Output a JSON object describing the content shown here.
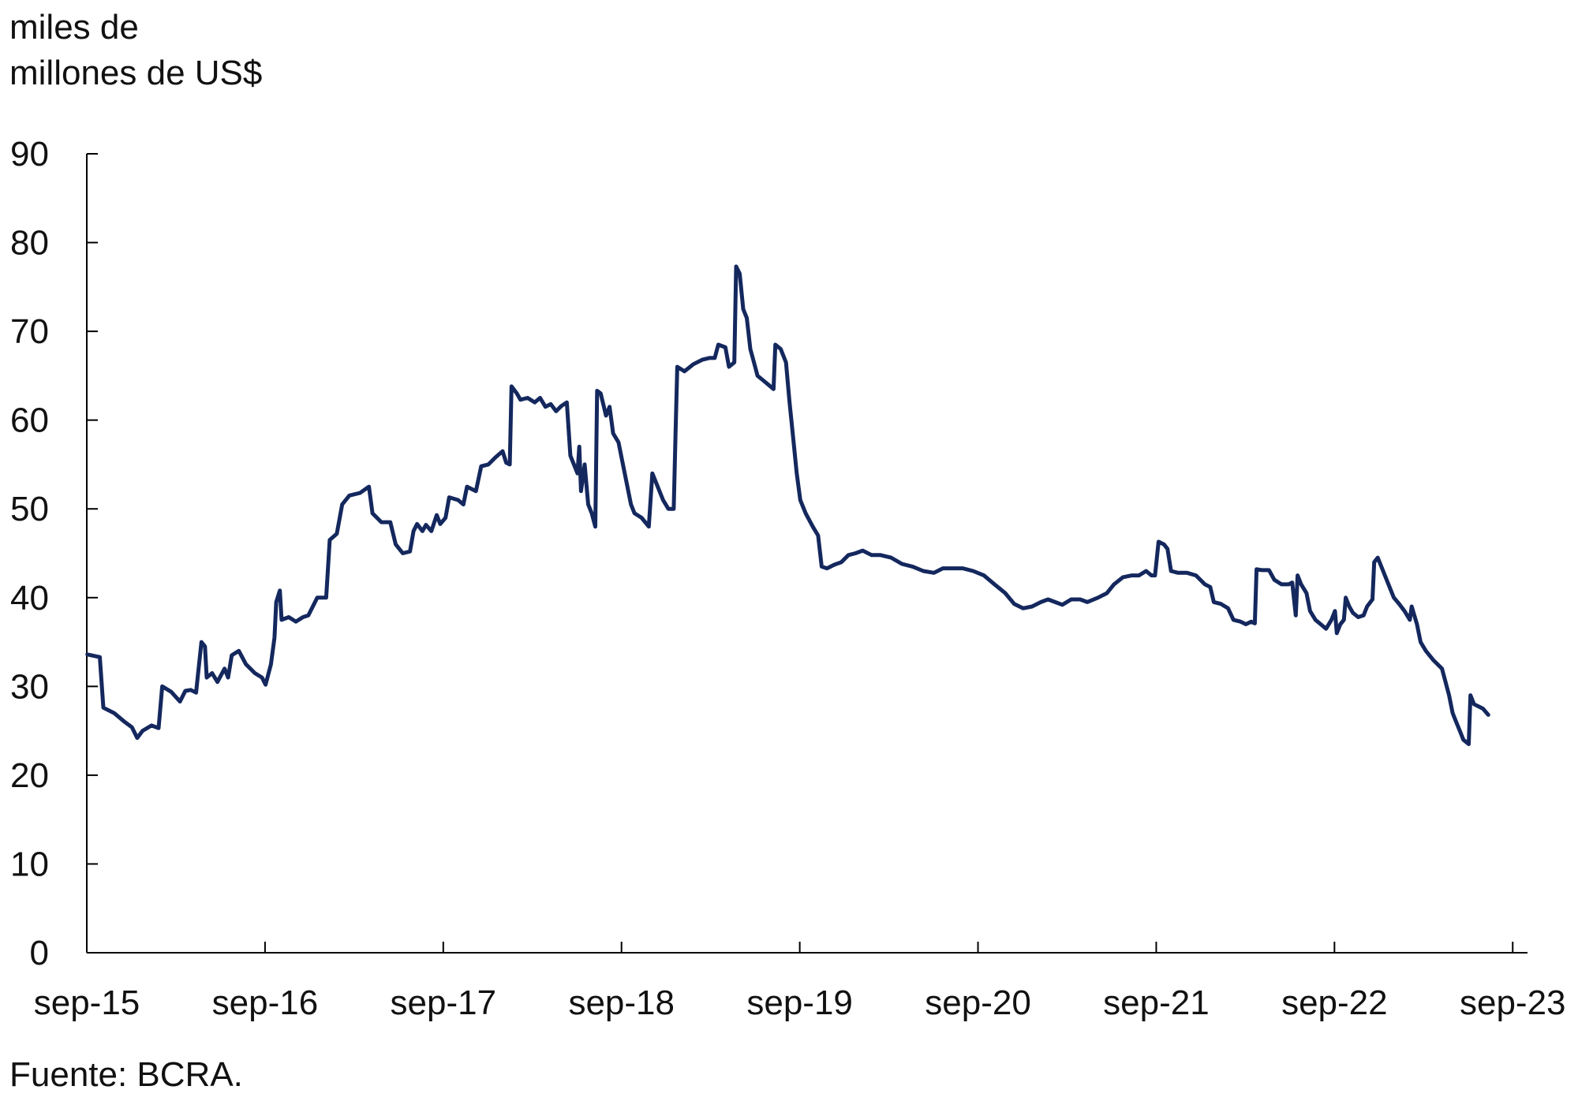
{
  "unit_label": [
    "miles de",
    "millones de US$"
  ],
  "source": "Fuente: BCRA.",
  "colors": {
    "line": "#14285e",
    "axis": "#000000",
    "text": "#111111"
  },
  "chart_data": {
    "type": "line",
    "title": "",
    "xlabel": "",
    "ylabel": "miles de millones de US$",
    "grid": false,
    "legend": "none",
    "xlim": [
      2015.667,
      2023.75
    ],
    "ylim": [
      0,
      90
    ],
    "yticks": [
      0,
      10,
      20,
      30,
      40,
      50,
      60,
      70,
      80,
      90
    ],
    "xticks": [
      {
        "x": 2015.667,
        "label": "sep-15"
      },
      {
        "x": 2016.667,
        "label": "sep-16"
      },
      {
        "x": 2017.667,
        "label": "sep-17"
      },
      {
        "x": 2018.667,
        "label": "sep-18"
      },
      {
        "x": 2019.667,
        "label": "sep-19"
      },
      {
        "x": 2020.667,
        "label": "sep-20"
      },
      {
        "x": 2021.667,
        "label": "sep-21"
      },
      {
        "x": 2022.667,
        "label": "sep-22"
      },
      {
        "x": 2023.667,
        "label": "sep-23"
      }
    ],
    "series": [
      {
        "name": "",
        "points": [
          [
            2015.67,
            33.6
          ],
          [
            2015.74,
            33.3
          ],
          [
            2015.76,
            27.6
          ],
          [
            2015.82,
            27.0
          ],
          [
            2015.88,
            26.0
          ],
          [
            2015.92,
            25.4
          ],
          [
            2015.95,
            24.2
          ],
          [
            2015.98,
            25.0
          ],
          [
            2016.03,
            25.6
          ],
          [
            2016.07,
            25.3
          ],
          [
            2016.09,
            30.0
          ],
          [
            2016.14,
            29.4
          ],
          [
            2016.19,
            28.3
          ],
          [
            2016.22,
            29.5
          ],
          [
            2016.25,
            29.6
          ],
          [
            2016.28,
            29.3
          ],
          [
            2016.31,
            35.0
          ],
          [
            2016.33,
            34.5
          ],
          [
            2016.34,
            31.0
          ],
          [
            2016.37,
            31.5
          ],
          [
            2016.4,
            30.5
          ],
          [
            2016.44,
            32.0
          ],
          [
            2016.46,
            31.0
          ],
          [
            2016.48,
            33.5
          ],
          [
            2016.52,
            34.0
          ],
          [
            2016.56,
            32.5
          ],
          [
            2016.61,
            31.5
          ],
          [
            2016.65,
            31.0
          ],
          [
            2016.67,
            30.2
          ],
          [
            2016.7,
            32.5
          ],
          [
            2016.72,
            35.5
          ],
          [
            2016.73,
            39.5
          ],
          [
            2016.75,
            40.8
          ],
          [
            2016.76,
            37.5
          ],
          [
            2016.8,
            37.8
          ],
          [
            2016.84,
            37.3
          ],
          [
            2016.88,
            37.8
          ],
          [
            2016.91,
            38.0
          ],
          [
            2016.96,
            40.0
          ],
          [
            2017.01,
            40.0
          ],
          [
            2017.03,
            46.5
          ],
          [
            2017.07,
            47.2
          ],
          [
            2017.1,
            50.5
          ],
          [
            2017.14,
            51.5
          ],
          [
            2017.2,
            51.8
          ],
          [
            2017.25,
            52.5
          ],
          [
            2017.27,
            49.5
          ],
          [
            2017.32,
            48.5
          ],
          [
            2017.37,
            48.5
          ],
          [
            2017.4,
            46.0
          ],
          [
            2017.44,
            45.0
          ],
          [
            2017.48,
            45.2
          ],
          [
            2017.5,
            47.5
          ],
          [
            2017.52,
            48.3
          ],
          [
            2017.55,
            47.5
          ],
          [
            2017.57,
            48.2
          ],
          [
            2017.6,
            47.5
          ],
          [
            2017.63,
            49.3
          ],
          [
            2017.65,
            48.3
          ],
          [
            2017.68,
            49.0
          ],
          [
            2017.7,
            51.3
          ],
          [
            2017.75,
            51.0
          ],
          [
            2017.78,
            50.5
          ],
          [
            2017.8,
            52.5
          ],
          [
            2017.85,
            52.0
          ],
          [
            2017.88,
            54.8
          ],
          [
            2017.92,
            55.0
          ],
          [
            2017.96,
            55.8
          ],
          [
            2018.0,
            56.5
          ],
          [
            2018.02,
            55.2
          ],
          [
            2018.04,
            55.0
          ],
          [
            2018.05,
            63.8
          ],
          [
            2018.08,
            63.0
          ],
          [
            2018.1,
            62.3
          ],
          [
            2018.14,
            62.5
          ],
          [
            2018.18,
            62.0
          ],
          [
            2018.21,
            62.5
          ],
          [
            2018.24,
            61.5
          ],
          [
            2018.27,
            61.8
          ],
          [
            2018.3,
            61.0
          ],
          [
            2018.33,
            61.6
          ],
          [
            2018.36,
            62.0
          ],
          [
            2018.38,
            56.0
          ],
          [
            2018.42,
            54.0
          ],
          [
            2018.43,
            57.0
          ],
          [
            2018.44,
            52.0
          ],
          [
            2018.46,
            55.0
          ],
          [
            2018.48,
            50.5
          ],
          [
            2018.5,
            49.5
          ],
          [
            2018.52,
            48.0
          ],
          [
            2018.53,
            63.3
          ],
          [
            2018.55,
            63.0
          ],
          [
            2018.58,
            60.5
          ],
          [
            2018.6,
            61.5
          ],
          [
            2018.62,
            58.5
          ],
          [
            2018.65,
            57.5
          ],
          [
            2018.67,
            55.5
          ],
          [
            2018.7,
            52.5
          ],
          [
            2018.72,
            50.5
          ],
          [
            2018.74,
            49.5
          ],
          [
            2018.78,
            49.0
          ],
          [
            2018.82,
            48.0
          ],
          [
            2018.84,
            54.0
          ],
          [
            2018.87,
            52.5
          ],
          [
            2018.9,
            51.0
          ],
          [
            2018.93,
            50.0
          ],
          [
            2018.96,
            50.0
          ],
          [
            2018.97,
            58.5
          ],
          [
            2018.98,
            66.0
          ],
          [
            2019.02,
            65.5
          ],
          [
            2019.07,
            66.3
          ],
          [
            2019.12,
            66.8
          ],
          [
            2019.16,
            67.0
          ],
          [
            2019.19,
            67.0
          ],
          [
            2019.21,
            68.5
          ],
          [
            2019.25,
            68.2
          ],
          [
            2019.27,
            66.0
          ],
          [
            2019.3,
            66.5
          ],
          [
            2019.31,
            77.3
          ],
          [
            2019.33,
            76.5
          ],
          [
            2019.35,
            72.5
          ],
          [
            2019.37,
            71.5
          ],
          [
            2019.39,
            68.0
          ],
          [
            2019.41,
            66.5
          ],
          [
            2019.43,
            65.0
          ],
          [
            2019.46,
            64.5
          ],
          [
            2019.49,
            64.0
          ],
          [
            2019.52,
            63.5
          ],
          [
            2019.53,
            68.5
          ],
          [
            2019.56,
            68.0
          ],
          [
            2019.59,
            66.5
          ],
          [
            2019.61,
            62.0
          ],
          [
            2019.63,
            58.0
          ],
          [
            2019.65,
            54.0
          ],
          [
            2019.67,
            51.0
          ],
          [
            2019.7,
            49.5
          ],
          [
            2019.74,
            48.0
          ],
          [
            2019.77,
            47.0
          ],
          [
            2019.79,
            43.5
          ],
          [
            2019.82,
            43.3
          ],
          [
            2019.86,
            43.7
          ],
          [
            2019.9,
            44.0
          ],
          [
            2019.94,
            44.8
          ],
          [
            2019.98,
            45.0
          ],
          [
            2020.02,
            45.3
          ],
          [
            2020.07,
            44.8
          ],
          [
            2020.12,
            44.8
          ],
          [
            2020.18,
            44.5
          ],
          [
            2020.24,
            43.8
          ],
          [
            2020.3,
            43.5
          ],
          [
            2020.36,
            43.0
          ],
          [
            2020.42,
            42.8
          ],
          [
            2020.47,
            43.3
          ],
          [
            2020.52,
            43.3
          ],
          [
            2020.58,
            43.3
          ],
          [
            2020.64,
            43.0
          ],
          [
            2020.7,
            42.5
          ],
          [
            2020.76,
            41.5
          ],
          [
            2020.82,
            40.5
          ],
          [
            2020.87,
            39.3
          ],
          [
            2020.92,
            38.8
          ],
          [
            2020.97,
            39.0
          ],
          [
            2021.02,
            39.5
          ],
          [
            2021.06,
            39.8
          ],
          [
            2021.1,
            39.5
          ],
          [
            2021.14,
            39.2
          ],
          [
            2021.19,
            39.8
          ],
          [
            2021.24,
            39.8
          ],
          [
            2021.28,
            39.5
          ],
          [
            2021.34,
            40.0
          ],
          [
            2021.39,
            40.5
          ],
          [
            2021.43,
            41.5
          ],
          [
            2021.48,
            42.3
          ],
          [
            2021.53,
            42.5
          ],
          [
            2021.57,
            42.5
          ],
          [
            2021.61,
            43.0
          ],
          [
            2021.64,
            42.5
          ],
          [
            2021.66,
            42.5
          ],
          [
            2021.68,
            46.3
          ],
          [
            2021.71,
            46.0
          ],
          [
            2021.73,
            45.5
          ],
          [
            2021.75,
            43.0
          ],
          [
            2021.79,
            42.8
          ],
          [
            2021.84,
            42.8
          ],
          [
            2021.89,
            42.5
          ],
          [
            2021.94,
            41.5
          ],
          [
            2021.97,
            41.2
          ],
          [
            2021.99,
            39.5
          ],
          [
            2022.03,
            39.3
          ],
          [
            2022.07,
            38.8
          ],
          [
            2022.1,
            37.5
          ],
          [
            2022.14,
            37.3
          ],
          [
            2022.17,
            37.0
          ],
          [
            2022.2,
            37.3
          ],
          [
            2022.22,
            37.1
          ],
          [
            2022.23,
            43.2
          ],
          [
            2022.26,
            43.1
          ],
          [
            2022.3,
            43.1
          ],
          [
            2022.33,
            42.0
          ],
          [
            2022.37,
            41.5
          ],
          [
            2022.41,
            41.5
          ],
          [
            2022.43,
            41.7
          ],
          [
            2022.45,
            38.0
          ],
          [
            2022.46,
            42.5
          ],
          [
            2022.48,
            41.5
          ],
          [
            2022.51,
            40.5
          ],
          [
            2022.53,
            38.5
          ],
          [
            2022.56,
            37.5
          ],
          [
            2022.59,
            37.0
          ],
          [
            2022.62,
            36.5
          ],
          [
            2022.65,
            37.5
          ],
          [
            2022.67,
            38.5
          ],
          [
            2022.68,
            36.0
          ],
          [
            2022.7,
            37.0
          ],
          [
            2022.72,
            37.5
          ],
          [
            2022.73,
            40.0
          ],
          [
            2022.75,
            39.0
          ],
          [
            2022.77,
            38.3
          ],
          [
            2022.8,
            37.8
          ],
          [
            2022.83,
            38.0
          ],
          [
            2022.85,
            39.0
          ],
          [
            2022.88,
            39.8
          ],
          [
            2022.89,
            44.0
          ],
          [
            2022.91,
            44.5
          ],
          [
            2022.94,
            43.0
          ],
          [
            2022.97,
            41.5
          ],
          [
            2023.0,
            40.0
          ],
          [
            2023.03,
            39.3
          ],
          [
            2023.06,
            38.5
          ],
          [
            2023.09,
            37.5
          ],
          [
            2023.1,
            39.0
          ],
          [
            2023.13,
            37.0
          ],
          [
            2023.15,
            35.0
          ],
          [
            2023.18,
            34.0
          ],
          [
            2023.22,
            33.0
          ],
          [
            2023.27,
            32.0
          ],
          [
            2023.31,
            29.0
          ],
          [
            2023.33,
            27.0
          ],
          [
            2023.35,
            26.0
          ],
          [
            2023.37,
            25.0
          ],
          [
            2023.39,
            24.0
          ],
          [
            2023.42,
            23.5
          ],
          [
            2023.43,
            29.0
          ],
          [
            2023.45,
            28.0
          ],
          [
            2023.5,
            27.5
          ],
          [
            2023.53,
            26.8
          ]
        ]
      }
    ]
  }
}
